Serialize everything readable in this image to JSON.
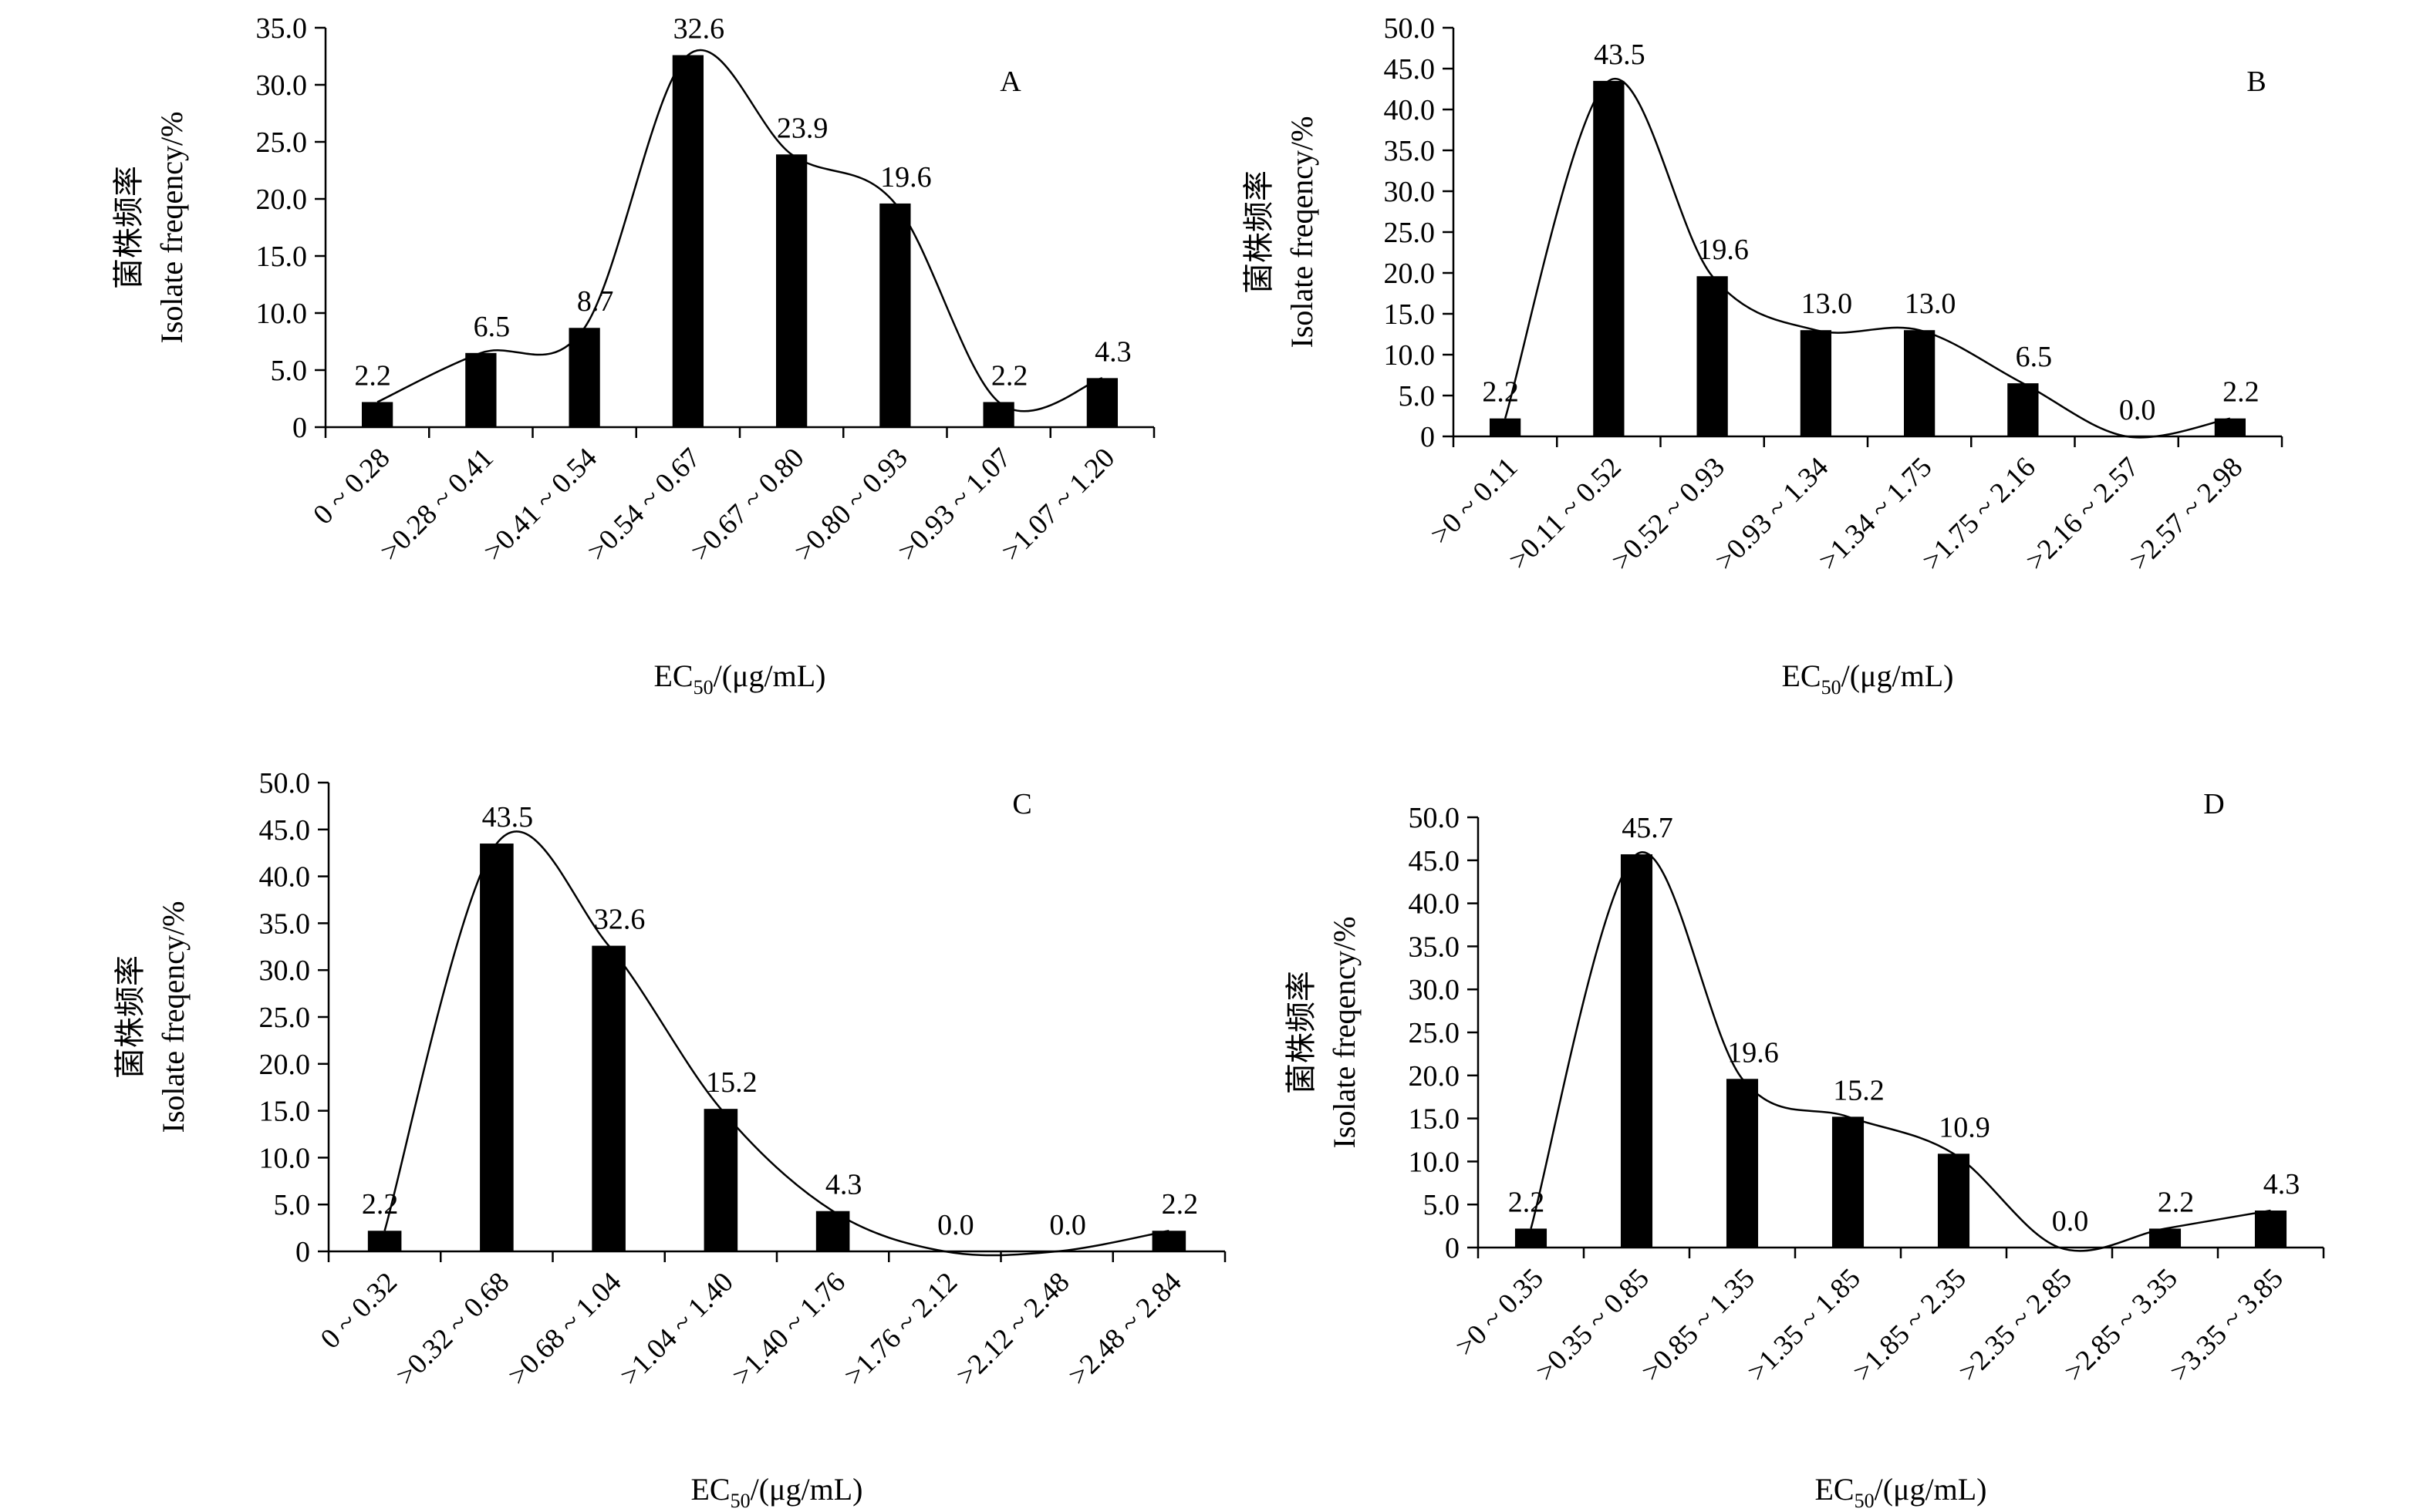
{
  "figure": {
    "ylabel_cn": "菌株频率",
    "ylabel_en": "Isolate freqency/%",
    "xlabel_main": "EC",
    "xlabel_sub": "50",
    "xlabel_unit": "/(μg/mL)"
  },
  "chart_data": [
    {
      "type": "bar",
      "panel": "A",
      "title": "A",
      "xlabel": "EC50/(μg/mL)",
      "ylabel": "菌株频率 Isolate freqency/%",
      "ylim": [
        0,
        35
      ],
      "yticks": [
        "0",
        "5.0",
        "10.0",
        "15.0",
        "20.0",
        "25.0",
        "30.0",
        "35.0"
      ],
      "categories": [
        "0 ~ 0.28",
        ">0.28 ~ 0.41",
        ">0.41 ~ 0.54",
        ">0.54 ~ 0.67",
        ">0.67 ~ 0.80",
        ">0.80 ~ 0.93",
        ">0.93 ~ 1.07",
        ">1.07 ~ 1.20"
      ],
      "values": [
        2.2,
        6.5,
        8.7,
        32.6,
        23.9,
        19.6,
        2.2,
        4.3
      ],
      "labels": [
        "2.2",
        "6.5",
        "8.7",
        "32.6",
        "23.9",
        "19.6",
        "2.2",
        "4.3"
      ],
      "smooth_line": true
    },
    {
      "type": "bar",
      "panel": "B",
      "title": "B",
      "xlabel": "EC50/(μg/mL)",
      "ylabel": "菌株频率 Isolate freqency/%",
      "ylim": [
        0,
        50
      ],
      "yticks": [
        "0",
        "5.0",
        "10.0",
        "15.0",
        "20.0",
        "25.0",
        "30.0",
        "35.0",
        "40.0",
        "45.0",
        "50.0"
      ],
      "categories": [
        ">0 ~ 0.11",
        ">0.11 ~ 0.52",
        ">0.52 ~ 0.93",
        ">0.93 ~ 1.34",
        ">1.34 ~ 1.75",
        ">1.75 ~ 2.16",
        ">2.16 ~ 2.57",
        ">2.57 ~ 2.98"
      ],
      "values": [
        2.2,
        43.5,
        19.6,
        13.0,
        13.0,
        6.5,
        0.0,
        2.2
      ],
      "labels": [
        "2.2",
        "43.5",
        "19.6",
        "13.0",
        "13.0",
        "6.5",
        "0.0",
        "2.2"
      ],
      "smooth_line": true
    },
    {
      "type": "bar",
      "panel": "C",
      "title": "C",
      "xlabel": "EC50/(μg/mL)",
      "ylabel": "菌株频率 Isolate freqency/%",
      "ylim": [
        0,
        50
      ],
      "yticks": [
        "0",
        "5.0",
        "10.0",
        "15.0",
        "20.0",
        "25.0",
        "30.0",
        "35.0",
        "40.0",
        "45.0",
        "50.0"
      ],
      "categories": [
        "0 ~ 0.32",
        ">0.32 ~ 0.68",
        ">0.68 ~ 1.04",
        ">1.04 ~ 1.40",
        ">1.40 ~ 1.76",
        ">1.76 ~ 2.12",
        ">2.12 ~ 2.48",
        ">2.48 ~ 2.84"
      ],
      "values": [
        2.2,
        43.5,
        32.6,
        15.2,
        4.3,
        0.0,
        0.0,
        2.2
      ],
      "labels": [
        "2.2",
        "43.5",
        "32.6",
        "15.2",
        "4.3",
        "0.0",
        "0.0",
        "2.2"
      ],
      "smooth_line": true
    },
    {
      "type": "bar",
      "panel": "D",
      "title": "D",
      "xlabel": "EC50/(μg/mL)",
      "ylabel": "菌株频率 Isolate freqency/%",
      "ylim": [
        0,
        50
      ],
      "yticks": [
        "0",
        "5.0",
        "10.0",
        "15.0",
        "20.0",
        "25.0",
        "30.0",
        "35.0",
        "40.0",
        "45.0",
        "50.0"
      ],
      "categories": [
        ">0 ~ 0.35",
        ">0.35 ~ 0.85",
        ">0.85 ~ 1.35",
        ">1.35 ~ 1.85",
        ">1.85 ~ 2.35",
        ">2.35 ~ 2.85",
        ">2.85 ~ 3.35",
        ">3.35 ~ 3.85"
      ],
      "values": [
        2.2,
        45.7,
        19.6,
        15.2,
        10.9,
        0.0,
        2.2,
        4.3
      ],
      "labels": [
        "2.2",
        "45.7",
        "19.6",
        "15.2",
        "10.9",
        "0.0",
        "2.2",
        "4.3"
      ],
      "smooth_line": true
    }
  ]
}
